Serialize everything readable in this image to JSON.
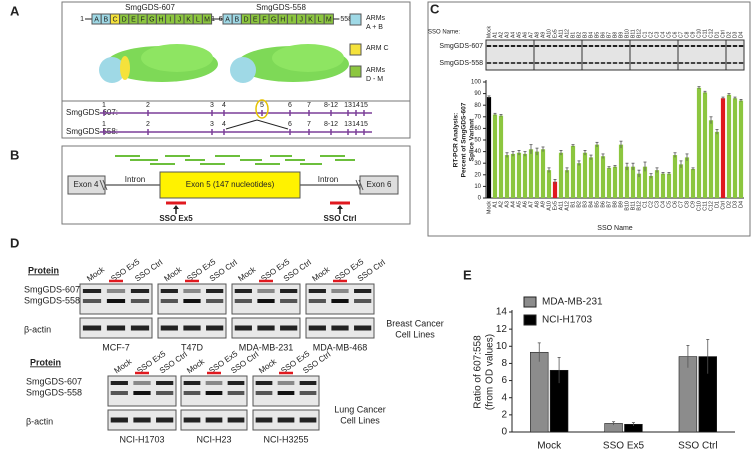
{
  "panels": {
    "a": {
      "label": "A",
      "structures": [
        {
          "name": "SmgGDS-607",
          "start": "1",
          "end": "607",
          "domains": [
            "A",
            "B",
            "C",
            "D",
            "E",
            "F",
            "G",
            "H",
            "I",
            "J",
            "K",
            "L",
            "M"
          ],
          "domain_colors": [
            "#9fd9e6",
            "#9fd9e6",
            "#f5e23b",
            "#8cc63f",
            "#8cc63f",
            "#8cc63f",
            "#8cc63f",
            "#8cc63f",
            "#8cc63f",
            "#8cc63f",
            "#8cc63f",
            "#8cc63f",
            "#8cc63f"
          ]
        },
        {
          "name": "SmgGDS-558",
          "start": "1",
          "end": "558",
          "domains": [
            "A",
            "B",
            "D",
            "E",
            "F",
            "G",
            "H",
            "I",
            "J",
            "K",
            "L",
            "M"
          ],
          "domain_colors": [
            "#9fd9e6",
            "#9fd9e6",
            "#8cc63f",
            "#8cc63f",
            "#8cc63f",
            "#8cc63f",
            "#8cc63f",
            "#8cc63f",
            "#8cc63f",
            "#8cc63f",
            "#8cc63f",
            "#8cc63f"
          ]
        }
      ],
      "legend": [
        {
          "lines": [
            "ARMs",
            "A + B"
          ],
          "color": "#9fd9e6"
        },
        {
          "lines": [
            "ARM C"
          ],
          "color": "#f5e23b"
        },
        {
          "lines": [
            "ARMs",
            "D - M"
          ],
          "color": "#8cc63f"
        }
      ],
      "transcripts": [
        {
          "name": "SmgGDS-607:",
          "exons": [
            "1",
            "2",
            "3",
            "4",
            "5",
            "6",
            "7",
            "8-12",
            "13",
            "14",
            "15"
          ]
        },
        {
          "name": "SmgGDS-558:",
          "exons": [
            "1",
            "2",
            "3",
            "4",
            "6",
            "7",
            "8-12",
            "13",
            "14",
            "15"
          ]
        }
      ]
    },
    "b": {
      "label": "B",
      "exon4": "Exon 4",
      "intron": "Intron",
      "exon5": "Exon 5 (147 nucleotides)",
      "exon6": "Exon 6",
      "sso": [
        "SSO Ex5",
        "SSO Ctrl"
      ]
    },
    "c": {
      "label": "C",
      "lane_heading": "SSO Name:",
      "bands": [
        "SmgGDS-607",
        "SmgGDS-558"
      ]
    },
    "d": {
      "label": "D",
      "protein_heading": "Protein",
      "bands": [
        "SmgGDS-607",
        "SmgGDS-558",
        "β-actin"
      ],
      "lanes": [
        "Mock",
        "SSO Ex5",
        "SSO Ctrl"
      ],
      "lane_colors": [
        "#222222",
        "#e0191f",
        "#222222"
      ],
      "breast": {
        "cell_lines": [
          "MCF-7",
          "T47D",
          "MDA-MB-231",
          "MDA-MB-468"
        ],
        "group_label": [
          "Breast Cancer",
          "Cell Lines"
        ]
      },
      "lung": {
        "cell_lines": [
          "NCI-H1703",
          "NCI-H23",
          "NCI-H3255"
        ],
        "group_label": [
          "Lung Cancer",
          "Cell Lines"
        ]
      }
    },
    "e": {
      "label": "E"
    }
  },
  "chart_data": [
    {
      "type": "bar",
      "y_label": [
        "RT-PCR Analysis:",
        "Percent of SmgGDS-607",
        "Splice Variant"
      ],
      "x_label": "SSO Name",
      "categories": [
        "Mock",
        "A1",
        "A2",
        "A3",
        "A4",
        "A5",
        "A6",
        "A7",
        "A8",
        "A9",
        "A10",
        "Ex5",
        "A11",
        "A12",
        "B1",
        "B2",
        "B3",
        "B4",
        "B5",
        "B6",
        "B7",
        "B8",
        "B9",
        "B10",
        "B11",
        "B12",
        "C1",
        "C2",
        "C3",
        "C4",
        "C5",
        "C6",
        "C7",
        "C8",
        "C9",
        "C10",
        "C11",
        "C12",
        "D1",
        "Ctrl",
        "D2",
        "D3",
        "D4"
      ],
      "values": [
        87,
        72,
        71,
        37,
        38,
        39,
        38,
        42,
        40,
        42,
        24,
        14,
        39,
        24,
        45,
        30,
        39,
        35,
        46,
        36,
        26,
        27,
        46,
        27,
        27,
        21,
        27,
        19,
        24,
        21,
        21,
        37,
        29,
        35,
        25,
        95,
        91,
        67,
        57,
        86,
        89,
        86,
        84
      ],
      "errors": [
        1,
        1,
        1,
        2,
        2,
        2,
        2,
        4,
        3,
        2,
        2,
        2,
        2,
        2,
        1,
        2,
        2,
        2,
        2,
        2,
        1,
        1,
        3,
        3,
        3,
        3,
        4,
        2,
        2,
        1,
        1,
        2,
        3,
        3,
        1,
        1,
        1,
        3,
        2,
        1,
        1,
        1,
        1
      ],
      "colors": [
        "#000000",
        "#8cc63f",
        "#8cc63f",
        "#8cc63f",
        "#8cc63f",
        "#8cc63f",
        "#8cc63f",
        "#8cc63f",
        "#8cc63f",
        "#8cc63f",
        "#8cc63f",
        "#e0191f",
        "#8cc63f",
        "#8cc63f",
        "#8cc63f",
        "#8cc63f",
        "#8cc63f",
        "#8cc63f",
        "#8cc63f",
        "#8cc63f",
        "#8cc63f",
        "#8cc63f",
        "#8cc63f",
        "#8cc63f",
        "#8cc63f",
        "#8cc63f",
        "#8cc63f",
        "#8cc63f",
        "#8cc63f",
        "#8cc63f",
        "#8cc63f",
        "#8cc63f",
        "#8cc63f",
        "#8cc63f",
        "#8cc63f",
        "#8cc63f",
        "#8cc63f",
        "#8cc63f",
        "#8cc63f",
        "#e0191f",
        "#8cc63f",
        "#8cc63f",
        "#8cc63f"
      ],
      "accent_color": "#e0191f",
      "ylim": [
        0,
        100
      ],
      "yticks": [
        0,
        10,
        20,
        30,
        40,
        50,
        60,
        70,
        80,
        90,
        100
      ]
    },
    {
      "type": "bar",
      "y_label": [
        "Ratio of 607:558",
        "(from OD values)"
      ],
      "categories": [
        "Mock",
        "SSO Ex5",
        "SSO Ctrl"
      ],
      "category_colors": [
        "#222222",
        "#e0191f",
        "#222222"
      ],
      "series": [
        {
          "name": "MDA-MB-231",
          "color": "#8c8c8c",
          "values": [
            9.3,
            1.0,
            8.8
          ],
          "errors": [
            1.1,
            0.2,
            1.3
          ]
        },
        {
          "name": "NCI-H1703",
          "color": "#000000",
          "values": [
            7.2,
            0.9,
            8.8
          ],
          "errors": [
            1.5,
            0.2,
            2.0
          ]
        }
      ],
      "ylim": [
        0,
        14
      ],
      "yticks": [
        0,
        2,
        4,
        6,
        8,
        10,
        12,
        14
      ]
    }
  ]
}
